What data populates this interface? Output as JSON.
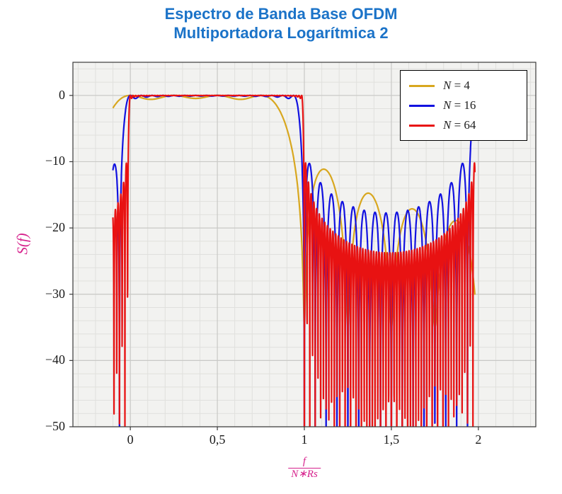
{
  "title": {
    "line1": "Espectro de Banda Base OFDM",
    "line2": "Multiportadora Logarítmica 2",
    "color": "#1b73c8"
  },
  "axis_labels": {
    "y": "S(f)",
    "x_numerator": "f",
    "x_denominator": "N∗Rs",
    "color": "#d6218c"
  },
  "chart_data": {
    "type": "line",
    "title": "Espectro de Banda Base OFDM Multiportadora Logarítmica 2",
    "xlabel": "f/(N∗Rs)",
    "ylabel": "S(f)",
    "grid": true,
    "plot_background": "#f2f2f0",
    "grid_minor_color": "#e0e0dd",
    "grid_major_color": "#c9c9c6",
    "border_color": "#3a3a3a",
    "x_axis": {
      "min": -0.33,
      "max": 2.33,
      "minor_step": 0.1,
      "ticks": [
        {
          "v": 0,
          "label": "0"
        },
        {
          "v": 0.5,
          "label": "0,5"
        },
        {
          "v": 1,
          "label": "1"
        },
        {
          "v": 1.5,
          "label": "1,5"
        },
        {
          "v": 2,
          "label": "2"
        }
      ]
    },
    "y_axis": {
      "min": -50,
      "max": 5,
      "minor_step": 2,
      "ticks": [
        {
          "v": 0,
          "label": "0"
        },
        {
          "v": -10,
          "label": "−10"
        },
        {
          "v": -20,
          "label": "−20"
        },
        {
          "v": -30,
          "label": "−30"
        },
        {
          "v": -40,
          "label": "−40"
        },
        {
          "v": -50,
          "label": "−50"
        }
      ]
    },
    "legend": {
      "position": "top-right"
    },
    "model": "S_N(x) = 10*log10( sum_{k=0}^{N-1} sinc^2(N*x - k) ), x = f/(N*Rs); flat 0 dB in band [0,1], sinc sidelobes and spectral nulls at x = m/N outside; N=16 and N=64 traces show the spectral replica rising near x = 2",
    "sampling": {
      "x_start": -0.1,
      "x_end": 1.98,
      "points": 2600
    },
    "series": [
      {
        "name": "N = 4",
        "N": 4,
        "color": "#d8a71f",
        "replica": 0,
        "floor_db": -35,
        "key_points": [
          [
            -0.1,
            -1.9
          ],
          [
            0,
            0
          ],
          [
            0.25,
            -0.2
          ],
          [
            0.5,
            0
          ],
          [
            0.75,
            -0.2
          ],
          [
            0.85,
            -2
          ],
          [
            0.95,
            -11
          ],
          [
            1.0,
            -37
          ],
          [
            1.12,
            -11.5
          ],
          [
            1.25,
            -30
          ],
          [
            1.37,
            -15
          ],
          [
            1.5,
            -26
          ],
          [
            1.62,
            -17.5
          ],
          [
            1.75,
            -23
          ],
          [
            1.87,
            -20
          ],
          [
            1.98,
            -24
          ]
        ]
      },
      {
        "name": "N = 16",
        "N": 16,
        "color": "#1212e0",
        "replica": 1,
        "floor_db": null,
        "key_points": [
          [
            -0.1,
            -11.3
          ],
          [
            -0.0625,
            -27
          ],
          [
            0,
            0
          ],
          [
            0.5,
            0
          ],
          [
            0.95,
            0
          ],
          [
            1.0,
            -25
          ],
          [
            1.1,
            -19
          ],
          [
            1.22,
            -17
          ],
          [
            1.35,
            -19
          ],
          [
            1.5,
            -21
          ],
          [
            1.65,
            -22
          ],
          [
            1.75,
            -24
          ],
          [
            1.85,
            -26
          ],
          [
            1.93,
            -40
          ],
          [
            1.97,
            -7
          ]
        ]
      },
      {
        "name": "N = 64",
        "N": 64,
        "color": "#e81212",
        "replica": 1,
        "floor_db": null,
        "key_points": [
          [
            -0.1,
            -18.5
          ],
          [
            -0.05,
            -33
          ],
          [
            0,
            0
          ],
          [
            0.5,
            0
          ],
          [
            0.99,
            0
          ],
          [
            1.05,
            -23
          ],
          [
            1.2,
            -24
          ],
          [
            1.4,
            -25
          ],
          [
            1.5,
            -26
          ],
          [
            1.6,
            -27
          ],
          [
            1.8,
            -29
          ],
          [
            1.9,
            -31
          ],
          [
            1.95,
            -43
          ],
          [
            1.98,
            -13
          ]
        ]
      }
    ]
  }
}
